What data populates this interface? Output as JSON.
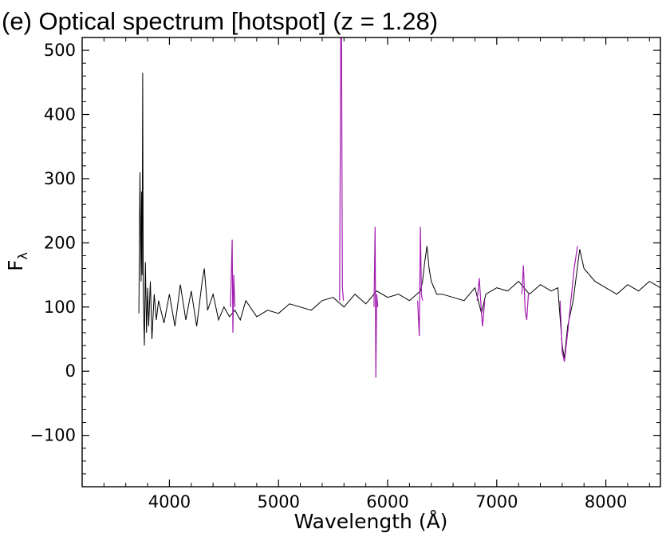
{
  "chart_data": {
    "type": "line",
    "title": "(e) Optical spectrum [hotspot] (z = 1.28)",
    "xlabel": "Wavelength (Å)",
    "ylabel_main": "F",
    "ylabel_sub": "λ",
    "xlim": [
      3200,
      8500
    ],
    "ylim": [
      -180,
      520
    ],
    "xticks": [
      4000,
      5000,
      6000,
      7000,
      8000
    ],
    "yticks": [
      -100,
      0,
      100,
      200,
      300,
      400,
      500
    ],
    "ytick_labels": [
      "−100",
      "0",
      "100",
      "200",
      "300",
      "400",
      "500"
    ],
    "grid": false,
    "series": [
      {
        "color": "#000000",
        "role": "spectrum",
        "x": [
          3720,
          3730,
          3740,
          3745,
          3750,
          3755,
          3760,
          3770,
          3780,
          3790,
          3800,
          3810,
          3825,
          3840,
          3860,
          3880,
          3900,
          3950,
          4000,
          4050,
          4100,
          4150,
          4200,
          4250,
          4300,
          4320,
          4350,
          4400,
          4450,
          4500,
          4550,
          4600,
          4650,
          4700,
          4800,
          4900,
          5000,
          5100,
          5200,
          5300,
          5400,
          5500,
          5600,
          5700,
          5800,
          5900,
          6000,
          6100,
          6200,
          6300,
          6320,
          6340,
          6360,
          6380,
          6400,
          6450,
          6500,
          6600,
          6700,
          6800,
          6860,
          6900,
          7000,
          7100,
          7200,
          7300,
          7400,
          7500,
          7560,
          7600,
          7620,
          7650,
          7700,
          7760,
          7800,
          7900,
          8000,
          8100,
          8200,
          8300,
          8400,
          8500
        ],
        "y": [
          90,
          310,
          140,
          280,
          150,
          465,
          120,
          40,
          170,
          60,
          130,
          70,
          140,
          50,
          120,
          80,
          110,
          75,
          120,
          70,
          135,
          80,
          125,
          70,
          140,
          160,
          95,
          120,
          80,
          100,
          85,
          95,
          80,
          110,
          85,
          95,
          90,
          105,
          100,
          95,
          110,
          115,
          100,
          120,
          105,
          125,
          115,
          120,
          110,
          125,
          140,
          170,
          195,
          160,
          140,
          120,
          120,
          115,
          110,
          130,
          90,
          120,
          130,
          125,
          140,
          120,
          135,
          125,
          130,
          40,
          20,
          70,
          110,
          190,
          160,
          140,
          130,
          120,
          135,
          125,
          140,
          130
        ]
      },
      {
        "color": "#a21caf",
        "role": "masked-regions",
        "segments": [
          {
            "x": [
              4560,
              4575,
              4582,
              4590,
              4600
            ],
            "y": [
              100,
              205,
              60,
              150,
              100
            ]
          },
          {
            "x": [
              5560,
              5570,
              5577,
              5585,
              5595
            ],
            "y": [
              110,
              520,
              520,
              130,
              110
            ]
          },
          {
            "x": [
              5875,
              5885,
              5892,
              5900,
              5910
            ],
            "y": [
              100,
              225,
              -10,
              120,
              100
            ]
          },
          {
            "x": [
              6275,
              6290,
              6300,
              6310,
              6320
            ],
            "y": [
              110,
              55,
              225,
              120,
              110
            ]
          },
          {
            "x": [
              6820,
              6840,
              6860,
              6870,
              6890
            ],
            "y": [
              110,
              145,
              90,
              70,
              110
            ]
          },
          {
            "x": [
              7230,
              7245,
              7260,
              7275,
              7290
            ],
            "y": [
              120,
              165,
              95,
              80,
              120
            ]
          },
          {
            "x": [
              7580,
              7600,
              7620,
              7650,
              7680,
              7710,
              7740
            ],
            "y": [
              110,
              30,
              15,
              60,
              110,
              160,
              195
            ]
          }
        ]
      }
    ]
  }
}
